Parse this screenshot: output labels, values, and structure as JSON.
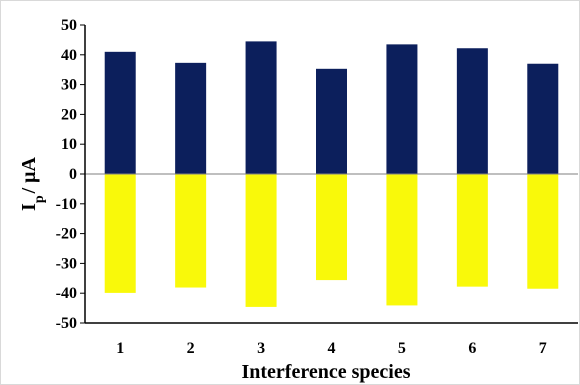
{
  "chart_data": {
    "type": "bar",
    "categories": [
      "1",
      "2",
      "3",
      "4",
      "5",
      "6",
      "7"
    ],
    "series": [
      {
        "values": [
          41,
          37.3,
          44.5,
          35.3,
          43.5,
          42.2,
          37
        ]
      },
      {
        "values": [
          -39.9,
          -38.1,
          -44.6,
          -35.6,
          -44.1,
          -37.8,
          -38.5
        ]
      }
    ],
    "xlabel": "Interference species",
    "ylabel_main": "I",
    "ylabel_sub": "p",
    "ylabel_rest": "/ μA",
    "ylim": [
      -50,
      50
    ],
    "yticks": [
      "-50",
      "-40",
      "-30",
      "-20",
      "-10",
      "0",
      "10",
      "20",
      "30",
      "40",
      "50"
    ],
    "grid": false,
    "legend": "none",
    "colors": {
      "positive": "#0c1f5c",
      "negative": "#f9f90a",
      "axis": "#000000"
    }
  }
}
